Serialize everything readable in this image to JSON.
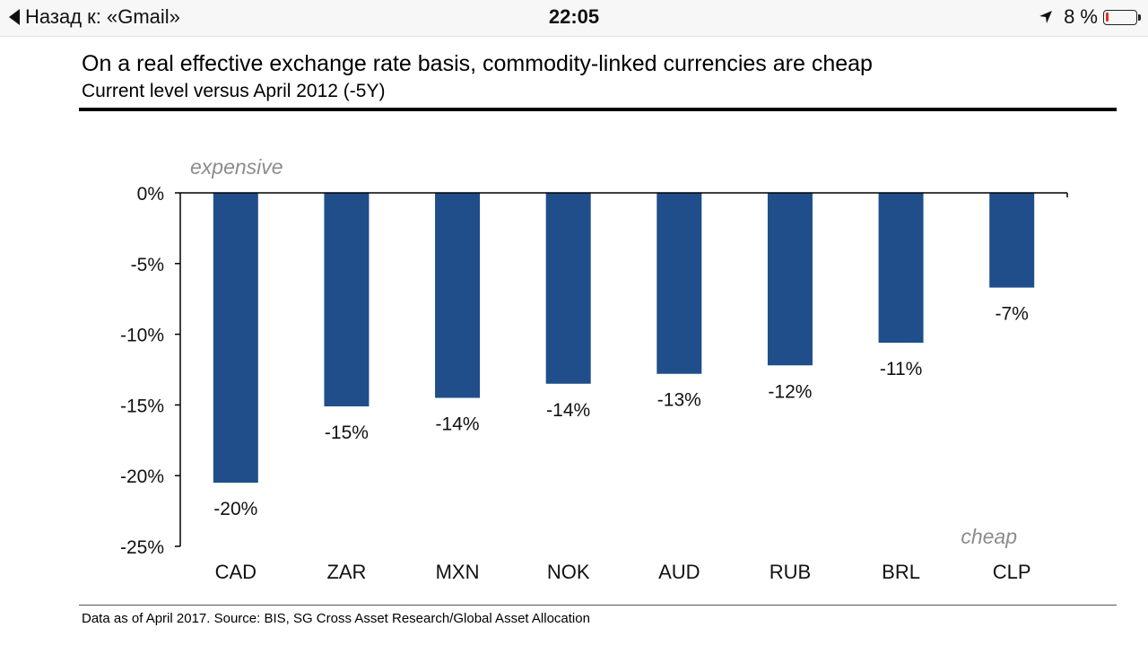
{
  "status_bar": {
    "back_label": "Назад к: «Gmail»",
    "time": "22:05",
    "battery": "8 %",
    "battery_level": 0.08
  },
  "chart_data": {
    "type": "bar",
    "title": "On a real effective exchange rate basis, commodity-linked currencies are cheap",
    "subtitle": "Current level versus April 2012 (-5Y)",
    "categories": [
      "CAD",
      "ZAR",
      "MXN",
      "NOK",
      "AUD",
      "RUB",
      "BRL",
      "CLP"
    ],
    "values": [
      -20.5,
      -15.1,
      -14.5,
      -13.5,
      -12.8,
      -12.2,
      -10.6,
      -6.7
    ],
    "data_labels": [
      "-20%",
      "-15%",
      "-14%",
      "-14%",
      "-13%",
      "-12%",
      "-11%",
      "-7%"
    ],
    "ylim": [
      -25,
      0
    ],
    "yticks": [
      0,
      -5,
      -10,
      -15,
      -20,
      -25
    ],
    "ytick_labels": [
      "0%",
      "-5%",
      "-10%",
      "-15%",
      "-20%",
      "-25%"
    ],
    "annotations": [
      "expensive",
      "cheap"
    ],
    "bar_color": "#1f4e8a",
    "grid": false,
    "footnote": "Data as of April 2017. Source: BIS, SG Cross Asset Research/Global Asset Allocation"
  }
}
